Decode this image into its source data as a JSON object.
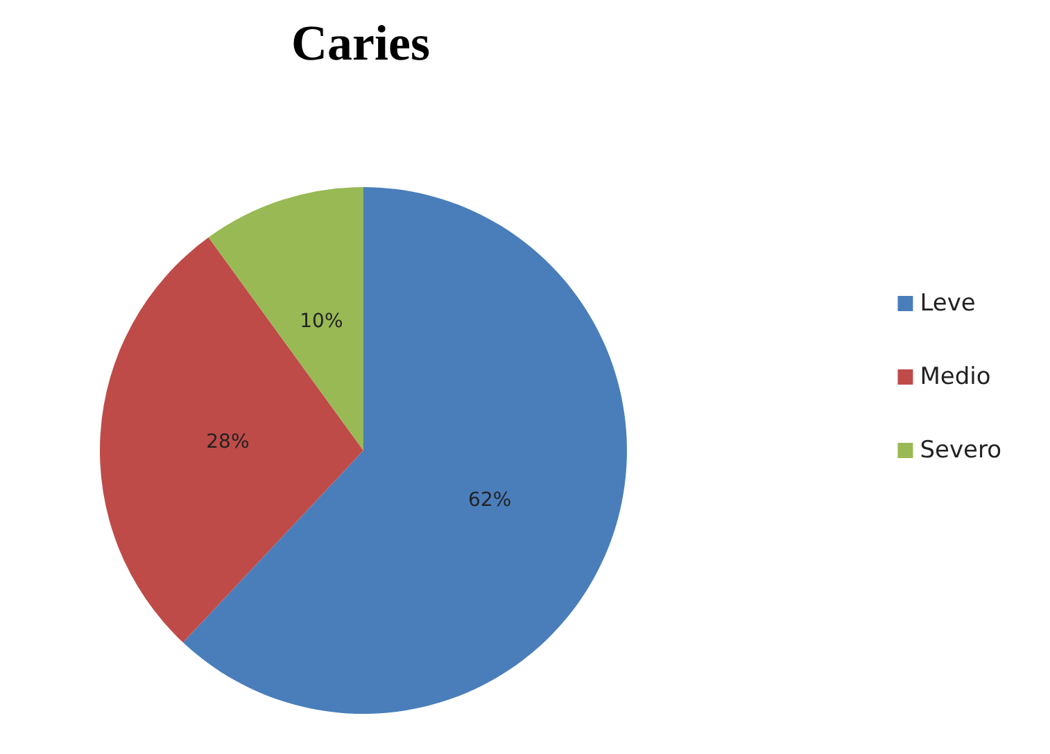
{
  "chart_data": {
    "type": "pie",
    "title": "Caries",
    "categories": [
      "Leve",
      "Medio",
      "Severo"
    ],
    "values": [
      62,
      28,
      10
    ],
    "value_labels": [
      "62%",
      "28%",
      "10%"
    ],
    "colors": [
      "#4a7ebb",
      "#be4b48",
      "#98b954"
    ],
    "legend": "right"
  }
}
